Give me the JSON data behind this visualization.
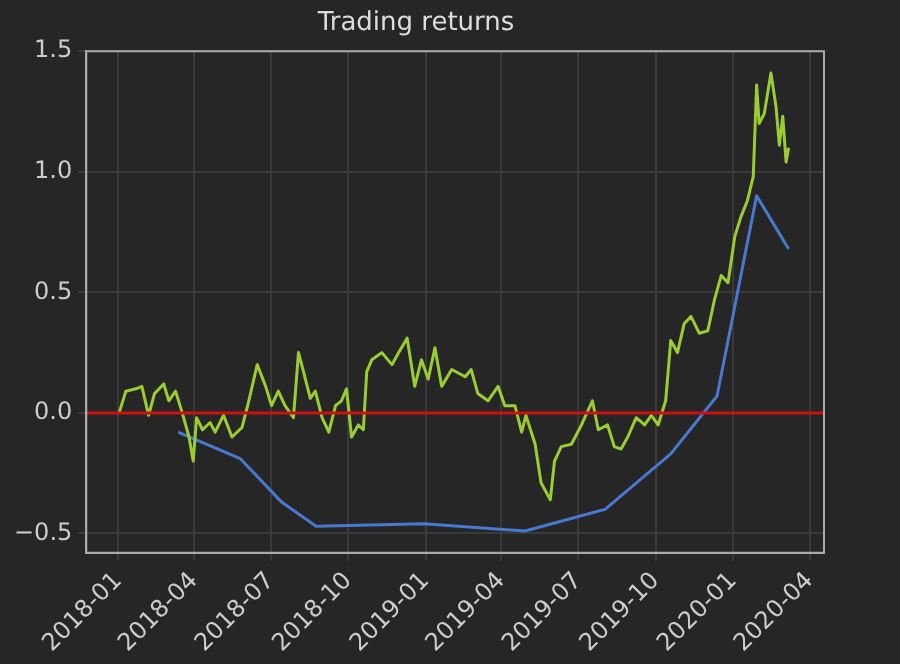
{
  "chart_data": {
    "type": "line",
    "title": "Trading returns",
    "xlim": [
      "2017-11-24",
      "2020-04-18"
    ],
    "xticks": [
      "2018-01",
      "2018-04",
      "2018-07",
      "2018-10",
      "2019-01",
      "2019-04",
      "2019-07",
      "2019-10",
      "2020-01",
      "2020-04"
    ],
    "ylim": [
      -0.58,
      1.5
    ],
    "yticks": [
      {
        "value": -0.5,
        "label": "−0.5"
      },
      {
        "value": 0,
        "label": "0.0"
      },
      {
        "value": 0.5,
        "label": "0.5"
      },
      {
        "value": 1,
        "label": "1.0"
      },
      {
        "value": 1.5,
        "label": "1.5"
      }
    ],
    "grid": true,
    "legend": false,
    "marker": "none",
    "line_style": "solid",
    "ref_lines": [
      {
        "axis": "y",
        "value": 0,
        "color": "#cc1111"
      }
    ],
    "series": [
      {
        "color": "#9acd32",
        "x": [
          "2018-01-02",
          "2018-01-10",
          "2018-01-22",
          "2018-01-29",
          "2018-02-06",
          "2018-02-13",
          "2018-02-24",
          "2018-03-02",
          "2018-03-10",
          "2018-03-18",
          "2018-03-26",
          "2018-03-31",
          "2018-04-04",
          "2018-04-11",
          "2018-04-20",
          "2018-04-26",
          "2018-05-06",
          "2018-05-16",
          "2018-05-28",
          "2018-06-05",
          "2018-06-15",
          "2018-06-25",
          "2018-07-02",
          "2018-07-10",
          "2018-07-18",
          "2018-07-28",
          "2018-08-03",
          "2018-08-09",
          "2018-08-17",
          "2018-08-23",
          "2018-08-31",
          "2018-09-08",
          "2018-09-16",
          "2018-09-23",
          "2018-09-29",
          "2018-10-05",
          "2018-10-13",
          "2018-10-19",
          "2018-10-23",
          "2018-10-29",
          "2018-11-10",
          "2018-11-22",
          "2018-11-30",
          "2018-12-10",
          "2018-12-19",
          "2018-12-27",
          "2019-01-04",
          "2019-01-12",
          "2019-01-20",
          "2019-02-01",
          "2019-02-17",
          "2019-02-24",
          "2019-03-04",
          "2019-03-16",
          "2019-03-28",
          "2019-04-05",
          "2019-04-17",
          "2019-04-25",
          "2019-04-30",
          "2019-05-11",
          "2019-05-18",
          "2019-05-29",
          "2019-06-03",
          "2019-06-11",
          "2019-06-23",
          "2019-07-05",
          "2019-07-18",
          "2019-07-25",
          "2019-08-05",
          "2019-08-13",
          "2019-08-21",
          "2019-08-29",
          "2019-09-08",
          "2019-09-18",
          "2019-09-26",
          "2019-10-04",
          "2019-10-13",
          "2019-10-19",
          "2019-10-27",
          "2019-11-04",
          "2019-11-12",
          "2019-11-22",
          "2019-12-02",
          "2019-12-10",
          "2019-12-18",
          "2019-12-26",
          "2020-01-03",
          "2020-01-10",
          "2020-01-18",
          "2020-01-25",
          "2020-01-29",
          "2020-02-01",
          "2020-02-07",
          "2020-02-15",
          "2020-02-21",
          "2020-02-25",
          "2020-02-29",
          "2020-03-04",
          "2020-03-07"
        ],
        "values": [
          0,
          0.09,
          0.1,
          0.11,
          -0.01,
          0.08,
          0.12,
          0.05,
          0.09,
          0,
          -0.1,
          -0.2,
          -0.02,
          -0.07,
          -0.04,
          -0.08,
          -0.01,
          -0.1,
          -0.06,
          0.05,
          0.2,
          0.11,
          0.03,
          0.09,
          0.03,
          -0.02,
          0.25,
          0.17,
          0.06,
          0.09,
          -0.02,
          -0.08,
          0.03,
          0.05,
          0.1,
          -0.1,
          -0.05,
          -0.07,
          0.17,
          0.22,
          0.25,
          0.2,
          0.25,
          0.31,
          0.11,
          0.22,
          0.14,
          0.27,
          0.11,
          0.18,
          0.15,
          0.18,
          0.08,
          0.05,
          0.11,
          0.03,
          0.03,
          -0.08,
          -0.01,
          -0.13,
          -0.29,
          -0.36,
          -0.2,
          -0.14,
          -0.13,
          -0.05,
          0.05,
          -0.07,
          -0.05,
          -0.14,
          -0.15,
          -0.1,
          -0.02,
          -0.05,
          -0.01,
          -0.05,
          0.05,
          0.3,
          0.25,
          0.37,
          0.4,
          0.33,
          0.34,
          0.47,
          0.57,
          0.54,
          0.73,
          0.81,
          0.88,
          0.98,
          1.36,
          1.2,
          1.24,
          1.41,
          1.27,
          1.11,
          1.23,
          1.04,
          1.1
        ]
      },
      {
        "color": "#4878cf",
        "x": [
          "2018-03-13",
          "2018-05-26",
          "2018-07-14",
          "2018-08-24",
          "2018-12-30",
          "2019-04-29",
          "2019-08-02",
          "2019-10-19",
          "2019-12-13",
          "2020-01-29",
          "2020-03-07"
        ],
        "values": [
          -0.08,
          -0.19,
          -0.37,
          -0.47,
          -0.46,
          -0.49,
          -0.4,
          -0.17,
          0.07,
          0.9,
          0.68
        ]
      }
    ]
  }
}
